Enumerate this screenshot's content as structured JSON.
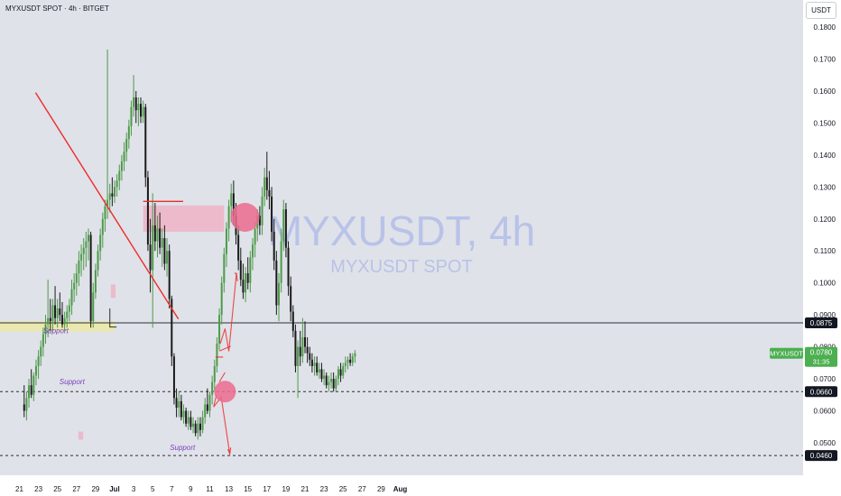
{
  "header": {
    "title": "MYXUSDT SPOT · 4h · BITGET",
    "currency_button": "USDT"
  },
  "watermark": {
    "main": "MYXUSDT, 4h",
    "sub": "MYXUSDT SPOT"
  },
  "colors": {
    "background": "#dfe2e8",
    "bull": "#4e9a4a",
    "bear": "#1a1a1a",
    "trendline": "#ee2b2b",
    "supply_zone": "#efb3c4",
    "demand_zone": "#ece9a6",
    "circle": "#ec6a8e",
    "support_text": "#7a3fbf",
    "price_green": "#4caf50"
  },
  "chart_data": {
    "type": "candlestick",
    "symbol": "MYXUSDT",
    "timeframe": "4h",
    "x_tick_labels": [
      "21",
      "23",
      "25",
      "27",
      "29",
      "Jul",
      "3",
      "5",
      "7",
      "9",
      "11",
      "13",
      "15",
      "17",
      "19",
      "21",
      "23",
      "25",
      "27",
      "29",
      "Aug"
    ],
    "y_tick_labels": [
      "0.1800",
      "0.1700",
      "0.1600",
      "0.1500",
      "0.1400",
      "0.1300",
      "0.1200",
      "0.1100",
      "0.1000",
      "0.0900",
      "0.0800",
      "0.0700",
      "0.0600",
      "0.0500"
    ],
    "y_ticks": [
      0.18,
      0.17,
      0.16,
      0.15,
      0.14,
      0.13,
      0.12,
      0.11,
      0.1,
      0.09,
      0.08,
      0.07,
      0.06,
      0.05
    ],
    "ylim": [
      0.0416,
      0.1876
    ],
    "price_labels": [
      {
        "text": "0.0875",
        "value": 0.0875,
        "style": "dark"
      },
      {
        "text": "0.0660",
        "value": 0.066,
        "style": "dark"
      },
      {
        "text": "0.0460",
        "value": 0.046,
        "style": "dark"
      }
    ],
    "current_price": {
      "symbol": "MYXUSDT",
      "price": "0.0780",
      "countdown": "31:35",
      "value": 0.078
    },
    "horizontal_lines": [
      {
        "value": 0.0875,
        "style": "solid"
      },
      {
        "value": 0.066,
        "style": "dashed"
      },
      {
        "value": 0.046,
        "style": "dashed"
      }
    ],
    "support_labels": [
      {
        "text": "Support",
        "day": 0.5,
        "value": 0.0842,
        "italic": true
      },
      {
        "text": "Support",
        "day": 2.2,
        "value": 0.0684,
        "italic": true
      },
      {
        "text": "Support",
        "day": 13.8,
        "value": 0.0477,
        "italic": true
      }
    ],
    "zones": [
      {
        "type": "demand",
        "day_start": -8.2,
        "day_end": 8.0,
        "low": 0.0848,
        "high": 0.088
      },
      {
        "type": "supply",
        "day_start": 11.0,
        "day_end": 19.5,
        "low": 0.116,
        "high": 0.1242
      },
      {
        "type": "supply",
        "day_start": 7.6,
        "day_end": 8.1,
        "low": 0.0953,
        "high": 0.0995
      },
      {
        "type": "supply",
        "day_start": 4.2,
        "day_end": 4.7,
        "low": 0.051,
        "high": 0.0535
      }
    ],
    "trendline": {
      "from_day": -0.3,
      "from_value": 0.1595,
      "to_day": 14.7,
      "to_value": 0.0887
    },
    "circles": [
      {
        "day": 21.7,
        "value": 0.1205
      },
      {
        "day": 19.6,
        "value": 0.066
      }
    ],
    "candles": [
      {
        "o": 0.062,
        "h": 0.068,
        "l": 0.058,
        "c": 0.06
      },
      {
        "o": 0.06,
        "h": 0.066,
        "l": 0.057,
        "c": 0.064
      },
      {
        "o": 0.064,
        "h": 0.07,
        "l": 0.061,
        "c": 0.068
      },
      {
        "o": 0.068,
        "h": 0.073,
        "l": 0.064,
        "c": 0.065
      },
      {
        "o": 0.065,
        "h": 0.072,
        "l": 0.063,
        "c": 0.071
      },
      {
        "o": 0.071,
        "h": 0.076,
        "l": 0.068,
        "c": 0.074
      },
      {
        "o": 0.074,
        "h": 0.079,
        "l": 0.07,
        "c": 0.077
      },
      {
        "o": 0.077,
        "h": 0.082,
        "l": 0.074,
        "c": 0.08
      },
      {
        "o": 0.08,
        "h": 0.086,
        "l": 0.077,
        "c": 0.084
      },
      {
        "o": 0.084,
        "h": 0.09,
        "l": 0.081,
        "c": 0.087
      },
      {
        "o": 0.087,
        "h": 0.101,
        "l": 0.083,
        "c": 0.089
      },
      {
        "o": 0.089,
        "h": 0.095,
        "l": 0.085,
        "c": 0.088
      },
      {
        "o": 0.088,
        "h": 0.095,
        "l": 0.085,
        "c": 0.093
      },
      {
        "o": 0.093,
        "h": 0.099,
        "l": 0.087,
        "c": 0.089
      },
      {
        "o": 0.089,
        "h": 0.095,
        "l": 0.086,
        "c": 0.092
      },
      {
        "o": 0.092,
        "h": 0.097,
        "l": 0.088,
        "c": 0.09
      },
      {
        "o": 0.09,
        "h": 0.094,
        "l": 0.086,
        "c": 0.087
      },
      {
        "o": 0.087,
        "h": 0.091,
        "l": 0.085,
        "c": 0.089
      },
      {
        "o": 0.089,
        "h": 0.093,
        "l": 0.086,
        "c": 0.091
      },
      {
        "o": 0.091,
        "h": 0.095,
        "l": 0.088,
        "c": 0.093
      },
      {
        "o": 0.093,
        "h": 0.101,
        "l": 0.09,
        "c": 0.098
      },
      {
        "o": 0.098,
        "h": 0.103,
        "l": 0.094,
        "c": 0.1
      },
      {
        "o": 0.1,
        "h": 0.106,
        "l": 0.096,
        "c": 0.103
      },
      {
        "o": 0.103,
        "h": 0.11,
        "l": 0.099,
        "c": 0.107
      },
      {
        "o": 0.107,
        "h": 0.112,
        "l": 0.102,
        "c": 0.109
      },
      {
        "o": 0.109,
        "h": 0.114,
        "l": 0.104,
        "c": 0.111
      },
      {
        "o": 0.111,
        "h": 0.116,
        "l": 0.105,
        "c": 0.113
      },
      {
        "o": 0.113,
        "h": 0.117,
        "l": 0.107,
        "c": 0.115
      },
      {
        "o": 0.115,
        "h": 0.116,
        "l": 0.086,
        "c": 0.088
      },
      {
        "o": 0.088,
        "h": 0.1,
        "l": 0.086,
        "c": 0.097
      },
      {
        "o": 0.097,
        "h": 0.106,
        "l": 0.095,
        "c": 0.104
      },
      {
        "o": 0.104,
        "h": 0.112,
        "l": 0.102,
        "c": 0.11
      },
      {
        "o": 0.11,
        "h": 0.117,
        "l": 0.107,
        "c": 0.115
      },
      {
        "o": 0.115,
        "h": 0.122,
        "l": 0.111,
        "c": 0.12
      },
      {
        "o": 0.12,
        "h": 0.126,
        "l": 0.116,
        "c": 0.124
      },
      {
        "o": 0.124,
        "h": 0.173,
        "l": 0.12,
        "c": 0.126
      },
      {
        "o": 0.126,
        "h": 0.131,
        "l": 0.122,
        "c": 0.128
      },
      {
        "o": 0.128,
        "h": 0.133,
        "l": 0.124,
        "c": 0.127
      },
      {
        "o": 0.127,
        "h": 0.132,
        "l": 0.125,
        "c": 0.13
      },
      {
        "o": 0.13,
        "h": 0.134,
        "l": 0.127,
        "c": 0.132
      },
      {
        "o": 0.132,
        "h": 0.137,
        "l": 0.129,
        "c": 0.135
      },
      {
        "o": 0.135,
        "h": 0.14,
        "l": 0.132,
        "c": 0.138
      },
      {
        "o": 0.138,
        "h": 0.144,
        "l": 0.135,
        "c": 0.141
      },
      {
        "o": 0.141,
        "h": 0.147,
        "l": 0.138,
        "c": 0.145
      },
      {
        "o": 0.145,
        "h": 0.151,
        "l": 0.142,
        "c": 0.149
      },
      {
        "o": 0.149,
        "h": 0.157,
        "l": 0.146,
        "c": 0.155
      },
      {
        "o": 0.155,
        "h": 0.165,
        "l": 0.152,
        "c": 0.158
      },
      {
        "o": 0.158,
        "h": 0.16,
        "l": 0.15,
        "c": 0.154
      },
      {
        "o": 0.154,
        "h": 0.158,
        "l": 0.149,
        "c": 0.156
      },
      {
        "o": 0.156,
        "h": 0.158,
        "l": 0.15,
        "c": 0.152
      },
      {
        "o": 0.152,
        "h": 0.157,
        "l": 0.15,
        "c": 0.155
      },
      {
        "o": 0.155,
        "h": 0.156,
        "l": 0.13,
        "c": 0.133
      },
      {
        "o": 0.133,
        "h": 0.135,
        "l": 0.11,
        "c": 0.112
      },
      {
        "o": 0.112,
        "h": 0.12,
        "l": 0.097,
        "c": 0.104
      },
      {
        "o": 0.104,
        "h": 0.128,
        "l": 0.086,
        "c": 0.118
      },
      {
        "o": 0.118,
        "h": 0.125,
        "l": 0.11,
        "c": 0.113
      },
      {
        "o": 0.113,
        "h": 0.121,
        "l": 0.108,
        "c": 0.117
      },
      {
        "o": 0.117,
        "h": 0.122,
        "l": 0.109,
        "c": 0.111
      },
      {
        "o": 0.111,
        "h": 0.117,
        "l": 0.105,
        "c": 0.114
      },
      {
        "o": 0.114,
        "h": 0.118,
        "l": 0.104,
        "c": 0.106
      },
      {
        "o": 0.106,
        "h": 0.114,
        "l": 0.102,
        "c": 0.11
      },
      {
        "o": 0.11,
        "h": 0.112,
        "l": 0.092,
        "c": 0.095
      },
      {
        "o": 0.095,
        "h": 0.096,
        "l": 0.074,
        "c": 0.077
      },
      {
        "o": 0.077,
        "h": 0.078,
        "l": 0.062,
        "c": 0.064
      },
      {
        "o": 0.064,
        "h": 0.067,
        "l": 0.058,
        "c": 0.061
      },
      {
        "o": 0.061,
        "h": 0.066,
        "l": 0.058,
        "c": 0.063
      },
      {
        "o": 0.063,
        "h": 0.065,
        "l": 0.057,
        "c": 0.058
      },
      {
        "o": 0.058,
        "h": 0.062,
        "l": 0.056,
        "c": 0.06
      },
      {
        "o": 0.06,
        "h": 0.061,
        "l": 0.055,
        "c": 0.056
      },
      {
        "o": 0.056,
        "h": 0.06,
        "l": 0.054,
        "c": 0.058
      },
      {
        "o": 0.058,
        "h": 0.06,
        "l": 0.054,
        "c": 0.055
      },
      {
        "o": 0.055,
        "h": 0.058,
        "l": 0.053,
        "c": 0.056
      },
      {
        "o": 0.056,
        "h": 0.057,
        "l": 0.052,
        "c": 0.053
      },
      {
        "o": 0.053,
        "h": 0.058,
        "l": 0.051,
        "c": 0.056
      },
      {
        "o": 0.056,
        "h": 0.058,
        "l": 0.052,
        "c": 0.054
      },
      {
        "o": 0.054,
        "h": 0.06,
        "l": 0.053,
        "c": 0.058
      },
      {
        "o": 0.058,
        "h": 0.064,
        "l": 0.056,
        "c": 0.062
      },
      {
        "o": 0.062,
        "h": 0.067,
        "l": 0.059,
        "c": 0.06
      },
      {
        "o": 0.06,
        "h": 0.066,
        "l": 0.058,
        "c": 0.065
      },
      {
        "o": 0.065,
        "h": 0.071,
        "l": 0.062,
        "c": 0.069
      },
      {
        "o": 0.069,
        "h": 0.076,
        "l": 0.066,
        "c": 0.074
      },
      {
        "o": 0.074,
        "h": 0.083,
        "l": 0.072,
        "c": 0.081
      },
      {
        "o": 0.081,
        "h": 0.092,
        "l": 0.079,
        "c": 0.09
      },
      {
        "o": 0.09,
        "h": 0.102,
        "l": 0.087,
        "c": 0.1
      },
      {
        "o": 0.1,
        "h": 0.111,
        "l": 0.097,
        "c": 0.109
      },
      {
        "o": 0.109,
        "h": 0.119,
        "l": 0.105,
        "c": 0.117
      },
      {
        "o": 0.117,
        "h": 0.126,
        "l": 0.113,
        "c": 0.124
      },
      {
        "o": 0.124,
        "h": 0.131,
        "l": 0.119,
        "c": 0.128
      },
      {
        "o": 0.128,
        "h": 0.132,
        "l": 0.118,
        "c": 0.121
      },
      {
        "o": 0.121,
        "h": 0.125,
        "l": 0.112,
        "c": 0.115
      },
      {
        "o": 0.115,
        "h": 0.118,
        "l": 0.104,
        "c": 0.107
      },
      {
        "o": 0.107,
        "h": 0.111,
        "l": 0.099,
        "c": 0.101
      },
      {
        "o": 0.101,
        "h": 0.106,
        "l": 0.095,
        "c": 0.097
      },
      {
        "o": 0.097,
        "h": 0.105,
        "l": 0.094,
        "c": 0.103
      },
      {
        "o": 0.103,
        "h": 0.108,
        "l": 0.098,
        "c": 0.1
      },
      {
        "o": 0.1,
        "h": 0.11,
        "l": 0.097,
        "c": 0.108
      },
      {
        "o": 0.108,
        "h": 0.114,
        "l": 0.104,
        "c": 0.112
      },
      {
        "o": 0.112,
        "h": 0.119,
        "l": 0.108,
        "c": 0.117
      },
      {
        "o": 0.117,
        "h": 0.123,
        "l": 0.113,
        "c": 0.121
      },
      {
        "o": 0.121,
        "h": 0.124,
        "l": 0.115,
        "c": 0.118
      },
      {
        "o": 0.118,
        "h": 0.13,
        "l": 0.115,
        "c": 0.127
      },
      {
        "o": 0.127,
        "h": 0.136,
        "l": 0.124,
        "c": 0.133
      },
      {
        "o": 0.133,
        "h": 0.141,
        "l": 0.126,
        "c": 0.129
      },
      {
        "o": 0.129,
        "h": 0.135,
        "l": 0.123,
        "c": 0.127
      },
      {
        "o": 0.127,
        "h": 0.13,
        "l": 0.113,
        "c": 0.116
      },
      {
        "o": 0.116,
        "h": 0.12,
        "l": 0.104,
        "c": 0.107
      },
      {
        "o": 0.107,
        "h": 0.11,
        "l": 0.09,
        "c": 0.093
      },
      {
        "o": 0.093,
        "h": 0.103,
        "l": 0.088,
        "c": 0.1
      },
      {
        "o": 0.1,
        "h": 0.117,
        "l": 0.097,
        "c": 0.113
      },
      {
        "o": 0.113,
        "h": 0.126,
        "l": 0.11,
        "c": 0.123
      },
      {
        "o": 0.123,
        "h": 0.125,
        "l": 0.108,
        "c": 0.111
      },
      {
        "o": 0.111,
        "h": 0.113,
        "l": 0.096,
        "c": 0.099
      },
      {
        "o": 0.099,
        "h": 0.102,
        "l": 0.088,
        "c": 0.091
      },
      {
        "o": 0.091,
        "h": 0.093,
        "l": 0.083,
        "c": 0.085
      },
      {
        "o": 0.085,
        "h": 0.087,
        "l": 0.072,
        "c": 0.074
      },
      {
        "o": 0.074,
        "h": 0.082,
        "l": 0.064,
        "c": 0.08
      },
      {
        "o": 0.08,
        "h": 0.085,
        "l": 0.074,
        "c": 0.077
      },
      {
        "o": 0.077,
        "h": 0.089,
        "l": 0.075,
        "c": 0.083
      },
      {
        "o": 0.083,
        "h": 0.088,
        "l": 0.078,
        "c": 0.08
      },
      {
        "o": 0.08,
        "h": 0.083,
        "l": 0.075,
        "c": 0.078
      },
      {
        "o": 0.078,
        "h": 0.08,
        "l": 0.074,
        "c": 0.076
      },
      {
        "o": 0.076,
        "h": 0.078,
        "l": 0.072,
        "c": 0.074
      },
      {
        "o": 0.074,
        "h": 0.077,
        "l": 0.071,
        "c": 0.075
      },
      {
        "o": 0.075,
        "h": 0.077,
        "l": 0.071,
        "c": 0.072
      },
      {
        "o": 0.072,
        "h": 0.075,
        "l": 0.07,
        "c": 0.073
      },
      {
        "o": 0.073,
        "h": 0.075,
        "l": 0.069,
        "c": 0.07
      },
      {
        "o": 0.07,
        "h": 0.073,
        "l": 0.068,
        "c": 0.071
      },
      {
        "o": 0.071,
        "h": 0.072,
        "l": 0.067,
        "c": 0.068
      },
      {
        "o": 0.068,
        "h": 0.071,
        "l": 0.066,
        "c": 0.069
      },
      {
        "o": 0.069,
        "h": 0.072,
        "l": 0.067,
        "c": 0.07
      },
      {
        "o": 0.07,
        "h": 0.072,
        "l": 0.066,
        "c": 0.067
      },
      {
        "o": 0.067,
        "h": 0.071,
        "l": 0.066,
        "c": 0.07
      },
      {
        "o": 0.07,
        "h": 0.074,
        "l": 0.068,
        "c": 0.073
      },
      {
        "o": 0.073,
        "h": 0.075,
        "l": 0.069,
        "c": 0.071
      },
      {
        "o": 0.071,
        "h": 0.075,
        "l": 0.07,
        "c": 0.074
      },
      {
        "o": 0.074,
        "h": 0.077,
        "l": 0.072,
        "c": 0.075
      },
      {
        "o": 0.075,
        "h": 0.077,
        "l": 0.073,
        "c": 0.076
      },
      {
        "o": 0.076,
        "h": 0.078,
        "l": 0.074,
        "c": 0.075
      },
      {
        "o": 0.075,
        "h": 0.078,
        "l": 0.074,
        "c": 0.077
      },
      {
        "o": 0.077,
        "h": 0.079,
        "l": 0.075,
        "c": 0.078
      }
    ]
  }
}
